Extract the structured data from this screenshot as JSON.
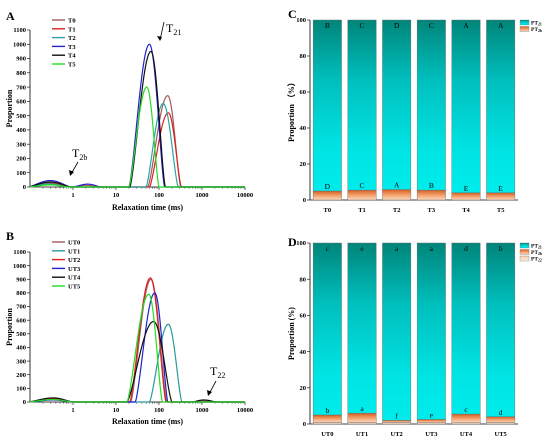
{
  "panels": {
    "A": "A",
    "B": "B",
    "C": "C",
    "D": "D"
  },
  "annotations": {
    "t21": "T",
    "t21_sub": "21",
    "t2b": "T",
    "t2b_sub": "2b",
    "t22": "T",
    "t22_sub": "22"
  },
  "chart_data": [
    {
      "id": "A",
      "type": "line",
      "xlabel": "Relaxation time (ms)",
      "ylabel": "Proportion",
      "xscale": "log",
      "xlim": [
        0.1,
        10000
      ],
      "ylim": [
        0,
        1100
      ],
      "xticks": [
        {
          "v": 1,
          "label": "1"
        },
        {
          "v": 10,
          "label": "10"
        },
        {
          "v": 100,
          "label": "100"
        },
        {
          "v": 1000,
          "label": "1000"
        },
        {
          "v": 10000,
          "label": "10000"
        }
      ],
      "yticks": [
        0,
        100,
        200,
        300,
        400,
        500,
        600,
        700,
        800,
        900,
        1000,
        1100
      ],
      "legend": "top-left",
      "series": [
        {
          "name": "T0",
          "color": "#a05a5a",
          "peaks": [
            {
              "center": 160,
              "height": 640,
              "left": 55,
              "right": 320
            },
            {
              "center": 0.28,
              "height": 28,
              "left": 0.09,
              "right": 0.9
            },
            {
              "center": 2.0,
              "height": 12,
              "left": 1.0,
              "right": 4.0
            }
          ]
        },
        {
          "name": "T1",
          "color": "#dd2222",
          "peaks": [
            {
              "center": 165,
              "height": 520,
              "left": 60,
              "right": 330
            },
            {
              "center": 0.3,
              "height": 25,
              "left": 0.09,
              "right": 0.9
            }
          ]
        },
        {
          "name": "T2",
          "color": "#2aa6a6",
          "peaks": [
            {
              "center": 125,
              "height": 585,
              "left": 50,
              "right": 280
            },
            {
              "center": 0.28,
              "height": 22,
              "left": 0.09,
              "right": 0.8
            }
          ]
        },
        {
          "name": "T3",
          "color": "#2222cc",
          "peaks": [
            {
              "center": 60,
              "height": 1000,
              "left": 20,
              "right": 135
            },
            {
              "center": 0.3,
              "height": 45,
              "left": 0.09,
              "right": 0.9
            },
            {
              "center": 2.2,
              "height": 20,
              "left": 1.0,
              "right": 4.5
            }
          ]
        },
        {
          "name": "T4",
          "color": "#111111",
          "peaks": [
            {
              "center": 65,
              "height": 950,
              "left": 21,
              "right": 140
            },
            {
              "center": 0.3,
              "height": 35,
              "left": 0.09,
              "right": 0.9
            }
          ]
        },
        {
          "name": "T5",
          "color": "#22dd22",
          "peaks": [
            {
              "center": 52,
              "height": 700,
              "left": 20,
              "right": 100
            },
            {
              "center": 0.3,
              "height": 15,
              "left": 0.09,
              "right": 0.8
            }
          ]
        }
      ]
    },
    {
      "id": "B",
      "type": "line",
      "xlabel": "Relaxation time (ms)",
      "ylabel": "Proportion",
      "xscale": "log",
      "xlim": [
        0.1,
        10000
      ],
      "ylim": [
        0,
        1100
      ],
      "xticks": [
        {
          "v": 1,
          "label": "1"
        },
        {
          "v": 10,
          "label": "10"
        },
        {
          "v": 100,
          "label": "100"
        },
        {
          "v": 1000,
          "label": "1000"
        },
        {
          "v": 10000,
          "label": "10000"
        }
      ],
      "yticks": [
        0,
        100,
        200,
        300,
        400,
        500,
        600,
        700,
        800,
        900,
        1000,
        1100
      ],
      "legend": "top-left",
      "series": [
        {
          "name": "UT0",
          "color": "#a05a5a",
          "peaks": [
            {
              "center": 65,
              "height": 900,
              "left": 22,
              "right": 150
            },
            {
              "center": 0.35,
              "height": 25,
              "left": 0.09,
              "right": 1.0
            },
            {
              "center": 1000,
              "height": 10,
              "left": 600,
              "right": 2000
            }
          ]
        },
        {
          "name": "UT1",
          "color": "#2a9a9a",
          "peaks": [
            {
              "center": 165,
              "height": 570,
              "left": 60,
              "right": 340
            },
            {
              "center": 0.35,
              "height": 20,
              "left": 0.09,
              "right": 1.0
            }
          ]
        },
        {
          "name": "UT2",
          "color": "#dd2222",
          "peaks": [
            {
              "center": 63,
              "height": 910,
              "left": 21,
              "right": 145
            },
            {
              "center": 0.35,
              "height": 22,
              "left": 0.09,
              "right": 1.0
            }
          ]
        },
        {
          "name": "UT3",
          "color": "#2222cc",
          "peaks": [
            {
              "center": 80,
              "height": 800,
              "left": 28,
              "right": 160
            },
            {
              "center": 0.35,
              "height": 15,
              "left": 0.09,
              "right": 1.0
            }
          ]
        },
        {
          "name": "UT4",
          "color": "#111111",
          "peaks": [
            {
              "center": 75,
              "height": 590,
              "left": 18,
              "right": 200
            },
            {
              "center": 0.35,
              "height": 30,
              "left": 0.09,
              "right": 1.0
            },
            {
              "center": 1100,
              "height": 15,
              "left": 600,
              "right": 2200
            }
          ]
        },
        {
          "name": "UT5",
          "color": "#22dd22",
          "peaks": [
            {
              "center": 58,
              "height": 790,
              "left": 18,
              "right": 120
            },
            {
              "center": 0.35,
              "height": 18,
              "left": 0.09,
              "right": 1.0
            }
          ]
        }
      ]
    },
    {
      "id": "C",
      "type": "bar",
      "stacked": true,
      "ylabel": "Proportion （%）",
      "ylim": [
        0,
        100
      ],
      "yticks": [
        0,
        20,
        40,
        60,
        80,
        100
      ],
      "categories": [
        "T0",
        "T1",
        "T2",
        "T3",
        "T4",
        "T5"
      ],
      "legend": "top-right",
      "series": [
        {
          "name": "PT21",
          "sub": "21",
          "color": "#00e0e0",
          "top_color": "#008a80",
          "values": [
            95.0,
            94.5,
            94.2,
            94.5,
            96.0,
            96.0
          ],
          "letters": [
            "B",
            "C",
            "D",
            "C",
            "A",
            "A"
          ]
        },
        {
          "name": "PT2b",
          "sub": "2b",
          "color": "#f0a070",
          "dark_color": "#d4622a",
          "values": [
            5.0,
            5.5,
            5.8,
            5.5,
            4.0,
            4.0
          ],
          "letters": [
            "D",
            "C",
            "A",
            "B",
            "E",
            "E"
          ]
        }
      ]
    },
    {
      "id": "D",
      "type": "bar",
      "stacked": true,
      "ylabel": "Proportion (%)",
      "ylim": [
        0,
        100
      ],
      "yticks": [
        0,
        20,
        40,
        60,
        80,
        100
      ],
      "categories": [
        "UT0",
        "UT1",
        "UT2",
        "UT3",
        "UT4",
        "UT5"
      ],
      "legend": "top-right",
      "series": [
        {
          "name": "PT21",
          "sub": "21",
          "color": "#00e0e0",
          "top_color": "#008a80",
          "values": [
            95.0,
            94.0,
            98.0,
            97.5,
            94.5,
            96.0
          ],
          "letters": [
            "c",
            "e",
            "a",
            "a",
            "d",
            "b"
          ]
        },
        {
          "name": "PT2b",
          "sub": "2b",
          "color": "#f0a070",
          "dark_color": "#d4622a",
          "values": [
            4.2,
            5.2,
            1.2,
            1.8,
            4.8,
            3.2
          ],
          "letters": [
            "b",
            "a",
            "f",
            "e",
            "c",
            "d"
          ]
        },
        {
          "name": "PT22",
          "sub": "22",
          "color": "#f3d9c6",
          "values": [
            0.8,
            0.8,
            0.8,
            0.7,
            0.7,
            0.8
          ],
          "letters": []
        }
      ]
    }
  ]
}
